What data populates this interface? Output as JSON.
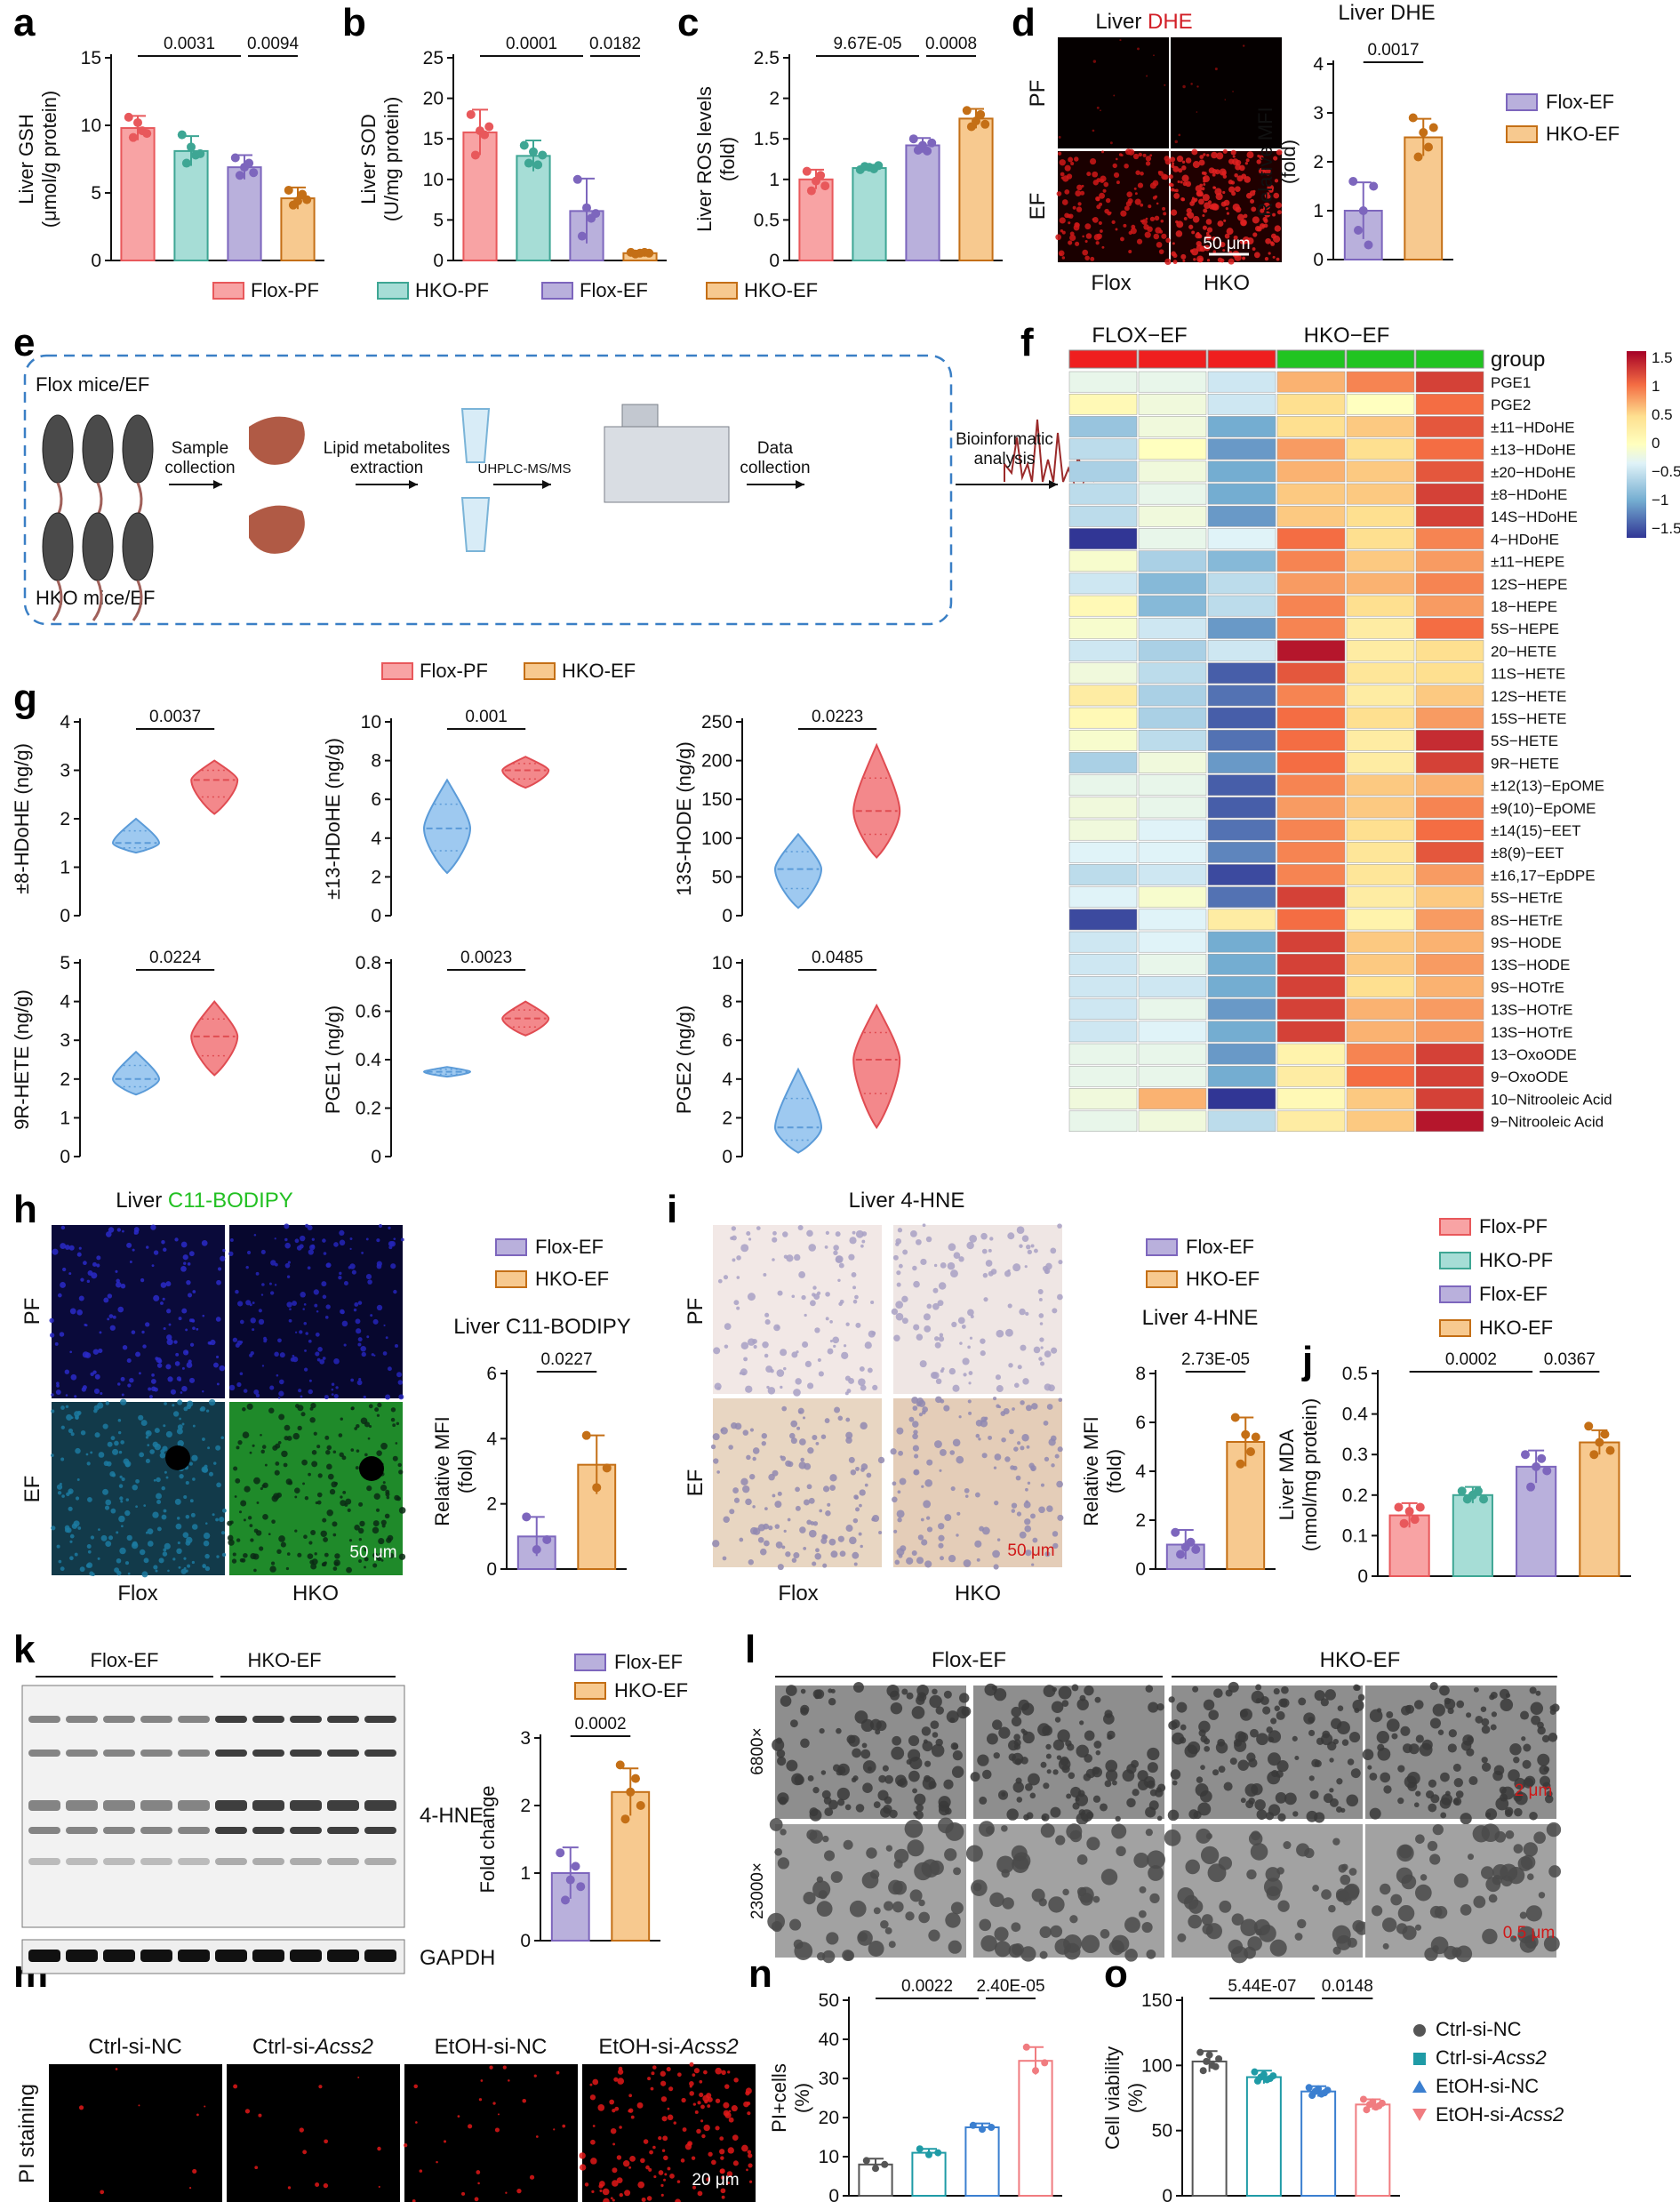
{
  "panel_letters": [
    "a",
    "b",
    "c",
    "d",
    "e",
    "f",
    "g",
    "h",
    "i",
    "j",
    "k",
    "l",
    "m",
    "n",
    "o"
  ],
  "colors": {
    "Flox-PF": "#f8a3a4",
    "HKO-PF": "#a6ddd6",
    "Flox-EF": "#b9b0dc",
    "HKO-EF": "#f7c98f",
    "Flox-PF-dot": "#e8585b",
    "HKO-PF-dot": "#3ea694",
    "Flox-EF-dot": "#7d66bd",
    "HKO-EF-dot": "#c46f16",
    "violin-blue": "#9ec9f0",
    "violin-red": "#f3888b"
  },
  "legend_main": [
    "Flox-PF",
    "HKO-PF",
    "Flox-EF",
    "HKO-EF"
  ],
  "legend_two": [
    "Flox-EF",
    "HKO-EF"
  ],
  "legend_g": [
    "Flox-PF",
    "HKO-EF"
  ],
  "legend_o": [
    "Ctrl-si-NC",
    "Ctrl-si-Acss2",
    "EtOH-si-NC",
    "EtOH-si-Acss2"
  ],
  "panel_d": {
    "title_prefix": "Liver ",
    "title_stain": "DHE",
    "chart_title": "Liver DHE",
    "rows": [
      "PF",
      "EF"
    ],
    "cols": [
      "Flox",
      "HKO"
    ],
    "scale": "50 μm"
  },
  "panel_e": {
    "flox_label": "Flox mice/EF",
    "hko_label": "HKO mice/EF",
    "steps": [
      "Sample collection",
      "Lipid metabolites extraction",
      "UHPLC-MS/MS",
      "Data collection",
      "Bioinformatic analysis"
    ]
  },
  "panel_h": {
    "title_prefix": "Liver ",
    "title_stain": "C11-BODIPY",
    "chart_title": "Liver C11-BODIPY",
    "rows": [
      "PF",
      "EF"
    ],
    "cols": [
      "Flox",
      "HKO"
    ],
    "scale": "50 μm"
  },
  "panel_i": {
    "title": "Liver 4-HNE",
    "chart_title": "Liver 4-HNE",
    "rows": [
      "PF",
      "EF"
    ],
    "cols": [
      "Flox",
      "HKO"
    ],
    "scale": "50 μm"
  },
  "panel_k": {
    "groups": [
      "Flox-EF",
      "HKO-EF"
    ],
    "bands": [
      "4-HNE",
      "GAPDH"
    ]
  },
  "panel_l": {
    "groups": [
      "Flox-EF",
      "HKO-EF"
    ],
    "mags": [
      "6800×",
      "23000×"
    ],
    "scales": [
      "2 μm",
      "0.5 μm"
    ]
  },
  "panel_m": {
    "cols": [
      "Ctrl-si-NC",
      "Ctrl-si-",
      "EtOH-si-NC",
      "EtOH-si-"
    ],
    "gene": "Acss2",
    "ylab": "PI staining",
    "scale": "20 μm"
  },
  "heatmap": {
    "col_groups": [
      "FLOX−EF",
      "HKO−EF"
    ],
    "group_label": "group",
    "colorbar_ticks": [
      "1.5",
      "1",
      "0.5",
      "0",
      "−0.5",
      "−1",
      "−1.5"
    ],
    "rows": [
      "PGE1",
      "PGE2",
      "±11−HDoHE",
      "±13−HDoHE",
      "±20−HDoHE",
      "±8−HDoHE",
      "14S−HDoHE",
      "4−HDoHE",
      "±11−HEPE",
      "12S−HEPE",
      "18−HEPE",
      "5S−HEPE",
      "20−HETE",
      "11S−HETE",
      "12S−HETE",
      "15S−HETE",
      "5S−HETE",
      "9R−HETE",
      "±12(13)−EpOME",
      "±9(10)−EpOME",
      "±14(15)−EET",
      "±8(9)−EET",
      "±16,17−EpDPE",
      "5S−HETrE",
      "8S−HETrE",
      "9S−HODE",
      "13S−HODE",
      "9S−HOTrE",
      "13S−HOTrE",
      "13S−HOTrE",
      "13−OxoODE",
      "9−OxoODE",
      "10−Nitrooleic Acid",
      "9−Nitrooleic Acid"
    ],
    "values": [
      [
        -0.3,
        -0.3,
        -0.5,
        0.7,
        0.9,
        1.2
      ],
      [
        0.1,
        -0.2,
        -0.5,
        0.5,
        0.0,
        1.0
      ],
      [
        -0.8,
        -0.2,
        -1.0,
        0.5,
        0.6,
        1.1
      ],
      [
        -0.6,
        0.0,
        -1.1,
        0.8,
        0.5,
        1.0
      ],
      [
        -0.7,
        -0.2,
        -1.0,
        0.7,
        0.6,
        1.1
      ],
      [
        -0.6,
        -0.3,
        -1.0,
        0.6,
        0.6,
        1.2
      ],
      [
        -0.6,
        -0.2,
        -1.1,
        0.6,
        0.5,
        1.2
      ],
      [
        -1.6,
        -0.3,
        -0.4,
        1.0,
        0.5,
        0.9
      ],
      [
        -0.1,
        -0.7,
        -0.9,
        0.9,
        0.6,
        0.8
      ],
      [
        -0.5,
        -0.9,
        -0.6,
        0.8,
        0.7,
        0.9
      ],
      [
        0.1,
        -0.9,
        -0.6,
        0.9,
        0.5,
        0.8
      ],
      [
        -0.1,
        -0.5,
        -1.1,
        0.9,
        0.3,
        1.0
      ],
      [
        -0.5,
        -0.7,
        -0.5,
        1.4,
        0.3,
        0.5
      ],
      [
        -0.2,
        -0.6,
        -1.4,
        1.1,
        0.4,
        0.5
      ],
      [
        0.3,
        -0.7,
        -1.3,
        0.9,
        0.3,
        0.6
      ],
      [
        0.1,
        -0.7,
        -1.4,
        1.0,
        0.5,
        0.8
      ],
      [
        -0.1,
        -0.6,
        -1.3,
        1.0,
        0.3,
        1.3
      ],
      [
        -0.7,
        -0.2,
        -1.1,
        1.0,
        0.3,
        1.2
      ],
      [
        -0.3,
        -0.3,
        -1.4,
        0.9,
        0.6,
        0.7
      ],
      [
        -0.2,
        -0.3,
        -1.4,
        0.8,
        0.6,
        0.9
      ],
      [
        -0.2,
        -0.4,
        -1.3,
        0.9,
        0.5,
        1.0
      ],
      [
        -0.4,
        -0.4,
        -1.2,
        0.9,
        0.4,
        1.1
      ],
      [
        -0.6,
        -0.5,
        -1.5,
        0.9,
        0.4,
        0.8
      ],
      [
        -0.4,
        -0.1,
        -1.3,
        1.2,
        0.3,
        0.6
      ],
      [
        -1.5,
        -0.4,
        0.3,
        1.0,
        0.2,
        0.8
      ],
      [
        -0.5,
        -0.4,
        -1.0,
        1.2,
        0.6,
        0.7
      ],
      [
        -0.5,
        -0.3,
        -1.0,
        1.2,
        0.6,
        0.8
      ],
      [
        -0.5,
        -0.5,
        -1.0,
        1.2,
        0.5,
        0.7
      ],
      [
        -0.5,
        -0.3,
        -1.1,
        1.2,
        0.7,
        0.8
      ],
      [
        -0.5,
        -0.4,
        -1.0,
        1.2,
        0.7,
        0.8
      ],
      [
        -0.3,
        -0.3,
        -1.1,
        0.2,
        0.9,
        1.2
      ],
      [
        -0.3,
        -0.3,
        -1.0,
        0.3,
        1.0,
        1.2
      ],
      [
        -0.2,
        0.7,
        -1.6,
        0.1,
        0.6,
        1.2
      ],
      [
        -0.3,
        -0.2,
        -0.6,
        0.3,
        0.6,
        1.4
      ]
    ]
  },
  "chart_data": [
    {
      "panel": "a",
      "type": "bar",
      "ylabel": "Liver GSH (μmol/g protein)",
      "ylim": [
        0,
        15
      ],
      "yticks": [
        0,
        5,
        10,
        15
      ],
      "categories": [
        "Flox-PF",
        "HKO-PF",
        "Flox-EF",
        "HKO-EF"
      ],
      "values": [
        9.8,
        8.1,
        6.9,
        4.6
      ],
      "sd": [
        0.9,
        1.1,
        0.9,
        0.8
      ],
      "points": [
        [
          10.6,
          9.1,
          10.2,
          9.6,
          9.4
        ],
        [
          9.3,
          7.2,
          8.4,
          7.8,
          7.9
        ],
        [
          7.6,
          6.3,
          6.9,
          7.2,
          6.5
        ],
        [
          5.2,
          4.1,
          4.4,
          4.9,
          4.5
        ]
      ],
      "comparisons": [
        {
          "from": 0,
          "to": 2,
          "p": "0.0031"
        },
        {
          "from": 2,
          "to": 3,
          "p": "0.0094"
        }
      ]
    },
    {
      "panel": "b",
      "type": "bar",
      "ylabel": "Liver SOD (U/mg protein)",
      "ylim": [
        0,
        25
      ],
      "yticks": [
        0,
        5,
        10,
        15,
        20,
        25
      ],
      "categories": [
        "Flox-PF",
        "HKO-PF",
        "Flox-EF",
        "HKO-EF"
      ],
      "values": [
        15.8,
        12.9,
        6.1,
        0.9
      ],
      "sd": [
        2.8,
        1.9,
        4.0,
        0.2
      ],
      "points": [
        [
          18.0,
          13.0,
          16.0,
          15.5,
          16.5
        ],
        [
          14.2,
          12.0,
          13.4,
          11.8,
          13.0
        ],
        [
          10.0,
          3.0,
          6.5,
          5.2,
          5.8
        ],
        [
          1.0,
          0.8,
          0.9,
          1.0,
          0.9
        ]
      ],
      "comparisons": [
        {
          "from": 0,
          "to": 2,
          "p": "0.0001"
        },
        {
          "from": 2,
          "to": 3,
          "p": "0.0182"
        }
      ]
    },
    {
      "panel": "c",
      "type": "bar",
      "ylabel": "Liver ROS levels (fold)",
      "ylim": [
        0,
        2.5
      ],
      "yticks": [
        0,
        0.5,
        1,
        1.5,
        2,
        2.5
      ],
      "categories": [
        "Flox-PF",
        "HKO-PF",
        "Flox-EF",
        "HKO-EF"
      ],
      "values": [
        1.0,
        1.14,
        1.42,
        1.75
      ],
      "sd": [
        0.12,
        0.04,
        0.09,
        0.12
      ],
      "points": [
        [
          1.1,
          0.86,
          0.98,
          1.05,
          0.92
        ],
        [
          1.12,
          1.16,
          1.15,
          1.13,
          1.17
        ],
        [
          1.5,
          1.36,
          1.42,
          1.35,
          1.45
        ],
        [
          1.85,
          1.65,
          1.72,
          1.8,
          1.68
        ]
      ],
      "comparisons": [
        {
          "from": 0,
          "to": 2,
          "p": "9.67E-05"
        },
        {
          "from": 2,
          "to": 3,
          "p": "0.0008"
        }
      ]
    },
    {
      "panel": "d",
      "type": "bar",
      "title": "Liver DHE",
      "ylabel": "Relative MFI (fold)",
      "ylim": [
        0,
        4
      ],
      "yticks": [
        0,
        1,
        2,
        3,
        4
      ],
      "categories": [
        "Flox-EF",
        "HKO-EF"
      ],
      "values": [
        1.0,
        2.5
      ],
      "sd": [
        0.58,
        0.38
      ],
      "points": [
        [
          1.6,
          0.6,
          1.0,
          0.3,
          1.5
        ],
        [
          2.9,
          2.1,
          2.6,
          2.3,
          2.7
        ]
      ],
      "comparisons": [
        {
          "from": 0,
          "to": 1,
          "p": "0.0017"
        }
      ]
    },
    {
      "panel": "g1",
      "type": "violin",
      "ylabel": "±8-HDoHE (ng/g)",
      "ylim": [
        0,
        4
      ],
      "yticks": [
        0,
        1,
        2,
        3,
        4
      ],
      "categories": [
        "Flox-PF",
        "HKO-EF"
      ],
      "medians": [
        1.5,
        2.8
      ],
      "ranges": [
        [
          1.3,
          2.0
        ],
        [
          2.1,
          3.2
        ]
      ],
      "p": "0.0037"
    },
    {
      "panel": "g2",
      "type": "violin",
      "ylabel": "±13-HDoHE (ng/g)",
      "ylim": [
        0,
        10
      ],
      "yticks": [
        0,
        2,
        4,
        6,
        8,
        10
      ],
      "categories": [
        "Flox-PF",
        "HKO-EF"
      ],
      "medians": [
        4.5,
        7.5
      ],
      "ranges": [
        [
          2.2,
          7.0
        ],
        [
          6.6,
          8.2
        ]
      ],
      "p": "0.001"
    },
    {
      "panel": "g3",
      "type": "violin",
      "ylabel": "13S-HODE (ng/g)",
      "ylim": [
        0,
        250
      ],
      "yticks": [
        0,
        50,
        100,
        150,
        200,
        250
      ],
      "categories": [
        "Flox-PF",
        "HKO-EF"
      ],
      "medians": [
        60,
        135
      ],
      "ranges": [
        [
          10,
          105
        ],
        [
          75,
          220
        ]
      ],
      "p": "0.0223"
    },
    {
      "panel": "g4",
      "type": "violin",
      "ylabel": "9R-HETE (ng/g)",
      "ylim": [
        0,
        5
      ],
      "yticks": [
        0,
        1,
        2,
        3,
        4,
        5
      ],
      "categories": [
        "Flox-PF",
        "HKO-EF"
      ],
      "medians": [
        2.0,
        3.1
      ],
      "ranges": [
        [
          1.6,
          2.7
        ],
        [
          2.1,
          4.0
        ]
      ],
      "p": "0.0224"
    },
    {
      "panel": "g5",
      "type": "violin",
      "ylabel": "PGE1 (ng/g)",
      "ylim": [
        0,
        0.8
      ],
      "yticks": [
        0,
        0.2,
        0.4,
        0.6,
        0.8
      ],
      "categories": [
        "Flox-PF",
        "HKO-EF"
      ],
      "medians": [
        0.35,
        0.57
      ],
      "ranges": [
        [
          0.33,
          0.37
        ],
        [
          0.5,
          0.64
        ]
      ],
      "p": "0.0023"
    },
    {
      "panel": "g6",
      "type": "violin",
      "ylabel": "PGE2 (ng/g)",
      "ylim": [
        0,
        10
      ],
      "yticks": [
        0,
        2,
        4,
        6,
        8,
        10
      ],
      "categories": [
        "Flox-PF",
        "HKO-EF"
      ],
      "medians": [
        1.5,
        5.0
      ],
      "ranges": [
        [
          0.2,
          4.5
        ],
        [
          1.5,
          7.8
        ]
      ],
      "p": "0.0485"
    },
    {
      "panel": "h",
      "type": "bar",
      "title": "Liver C11-BODIPY",
      "ylabel": "Relative MFI (fold)",
      "ylim": [
        0,
        6
      ],
      "yticks": [
        0,
        2,
        4,
        6
      ],
      "categories": [
        "Flox-EF",
        "HKO-EF"
      ],
      "values": [
        1.0,
        3.2
      ],
      "sd": [
        0.6,
        0.9
      ],
      "points": [
        [
          1.6,
          0.6,
          0.9
        ],
        [
          4.1,
          2.5,
          3.1
        ]
      ],
      "comparisons": [
        {
          "from": 0,
          "to": 1,
          "p": "0.0227"
        }
      ]
    },
    {
      "panel": "i",
      "type": "bar",
      "title": "Liver 4-HNE",
      "ylabel": "Relative MFI (fold)",
      "ylim": [
        0,
        8
      ],
      "yticks": [
        0,
        2,
        4,
        6,
        8
      ],
      "categories": [
        "Flox-EF",
        "HKO-EF"
      ],
      "values": [
        1.0,
        5.2
      ],
      "sd": [
        0.6,
        1.0
      ],
      "points": [
        [
          1.5,
          0.6,
          0.9,
          1.1,
          0.8
        ],
        [
          6.2,
          4.3,
          5.5,
          4.8,
          5.4
        ]
      ],
      "comparisons": [
        {
          "from": 0,
          "to": 1,
          "p": "2.73E-05"
        }
      ]
    },
    {
      "panel": "j",
      "type": "bar",
      "ylabel": "Liver MDA (nmol/mg protein)",
      "ylim": [
        0,
        0.5
      ],
      "yticks": [
        0,
        0.1,
        0.2,
        0.3,
        0.4,
        0.5
      ],
      "categories": [
        "Flox-PF",
        "HKO-PF",
        "Flox-EF",
        "HKO-EF"
      ],
      "values": [
        0.15,
        0.2,
        0.27,
        0.33
      ],
      "sd": [
        0.03,
        0.02,
        0.04,
        0.03
      ],
      "points": [
        [
          0.17,
          0.13,
          0.16,
          0.14,
          0.17
        ],
        [
          0.21,
          0.19,
          0.2,
          0.21,
          0.19
        ],
        [
          0.3,
          0.22,
          0.27,
          0.29,
          0.26
        ],
        [
          0.37,
          0.3,
          0.33,
          0.35,
          0.31
        ]
      ],
      "comparisons": [
        {
          "from": 0,
          "to": 2,
          "p": "0.0002"
        },
        {
          "from": 2,
          "to": 3,
          "p": "0.0367"
        }
      ]
    },
    {
      "panel": "k",
      "type": "bar",
      "ylabel": "Fold change",
      "ylim": [
        0,
        3
      ],
      "yticks": [
        0,
        1,
        2,
        3
      ],
      "categories": [
        "Flox-EF",
        "HKO-EF"
      ],
      "values": [
        1.0,
        2.2
      ],
      "sd": [
        0.38,
        0.35
      ],
      "points": [
        [
          1.3,
          0.6,
          0.9,
          1.1,
          0.8
        ],
        [
          2.6,
          1.8,
          2.2,
          2.4,
          2.0
        ]
      ],
      "comparisons": [
        {
          "from": 0,
          "to": 1,
          "p": "0.0002"
        }
      ]
    },
    {
      "panel": "n",
      "type": "bar",
      "ylabel": "PI+cells (%)",
      "ylim": [
        0,
        50
      ],
      "yticks": [
        0,
        10,
        20,
        30,
        40,
        50
      ],
      "categories": [
        "Ctrl-si-NC",
        "Ctrl-si-Acss2",
        "EtOH-si-NC",
        "EtOH-si-Acss2"
      ],
      "values": [
        8,
        11,
        17.5,
        34.5
      ],
      "sd": [
        1.5,
        1.0,
        1.0,
        3.5
      ],
      "points": [
        [
          9,
          7,
          8
        ],
        [
          12,
          10.5,
          11
        ],
        [
          18,
          17,
          17.5
        ],
        [
          38,
          32,
          34
        ]
      ],
      "comparisons": [
        {
          "from": 0,
          "to": 2,
          "p": "0.0022"
        },
        {
          "from": 2,
          "to": 3,
          "p": "2.40E-05"
        }
      ]
    },
    {
      "panel": "o",
      "type": "bar",
      "ylabel": "Cell viability (%)",
      "ylim": [
        0,
        150
      ],
      "yticks": [
        0,
        50,
        100,
        150
      ],
      "categories": [
        "Ctrl-si-NC",
        "Ctrl-si-Acss2",
        "EtOH-si-NC",
        "EtOH-si-Acss2"
      ],
      "values": [
        103,
        91,
        80,
        70
      ],
      "sd": [
        8,
        5,
        4,
        4
      ],
      "points": [
        [
          110,
          96,
          103,
          108,
          100,
          99,
          105
        ],
        [
          95,
          88,
          91,
          93,
          89,
          90,
          92
        ],
        [
          83,
          77,
          80,
          82,
          78,
          79,
          81
        ],
        [
          74,
          66,
          70,
          72,
          68,
          69,
          71
        ]
      ],
      "comparisons": [
        {
          "from": 0,
          "to": 2,
          "p": "5.44E-07"
        },
        {
          "from": 2,
          "to": 3,
          "p": "0.0148"
        }
      ]
    }
  ]
}
